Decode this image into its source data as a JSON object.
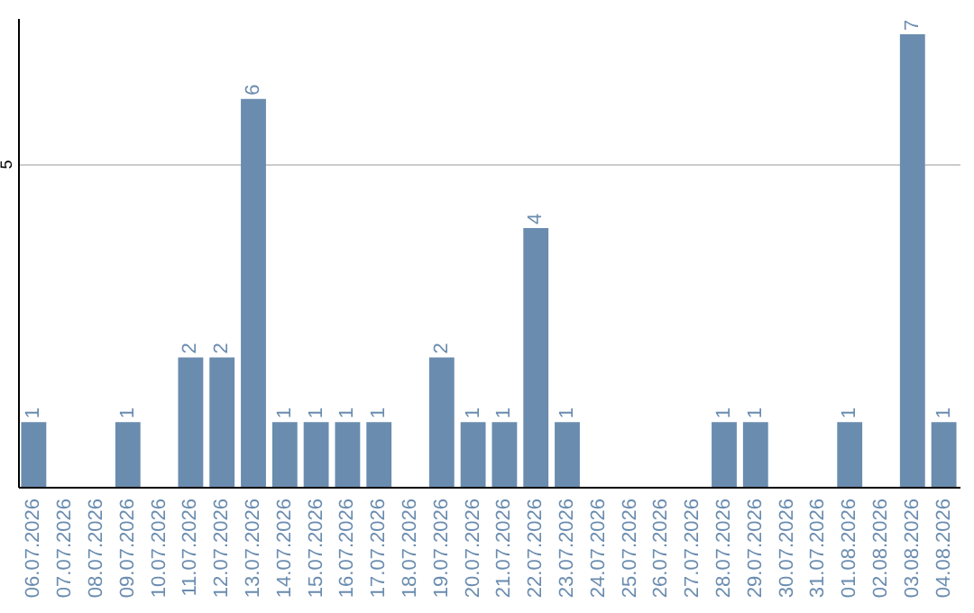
{
  "chart_data": {
    "type": "bar",
    "categories": [
      "06.07.2026",
      "07.07.2026",
      "08.07.2026",
      "09.07.2026",
      "10.07.2026",
      "11.07.2026",
      "12.07.2026",
      "13.07.2026",
      "14.07.2026",
      "15.07.2026",
      "16.07.2026",
      "17.07.2026",
      "18.07.2026",
      "19.07.2026",
      "20.07.2026",
      "21.07.2026",
      "22.07.2026",
      "23.07.2026",
      "24.07.2026",
      "25.07.2026",
      "26.07.2026",
      "27.07.2026",
      "28.07.2026",
      "29.07.2026",
      "30.07.2026",
      "31.07.2026",
      "01.08.2026",
      "02.08.2026",
      "03.08.2026",
      "04.08.2026"
    ],
    "values": [
      1,
      null,
      null,
      1,
      null,
      2,
      2,
      6,
      1,
      1,
      1,
      1,
      null,
      2,
      1,
      1,
      4,
      1,
      null,
      null,
      null,
      null,
      1,
      1,
      null,
      null,
      1,
      null,
      7,
      1
    ],
    "color": "#6a8caf",
    "ylim": [
      0,
      7.25
    ],
    "yticks": [
      5
    ],
    "grid": "y",
    "data_labels": true
  }
}
